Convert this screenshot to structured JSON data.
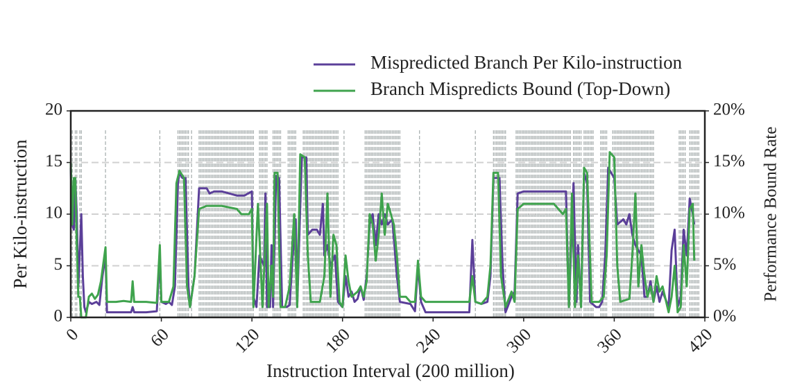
{
  "chart_data": {
    "type": "line",
    "xlabel": "Instruction Interval (200 million)",
    "ylabel": "Per Kilo-instruction",
    "y2label": "Performance Bound Rate",
    "xlim": [
      0,
      420
    ],
    "xticks": [
      0,
      60,
      120,
      180,
      240,
      300,
      360,
      420
    ],
    "ylim": [
      0,
      20
    ],
    "yticks": [
      0,
      5,
      10,
      15,
      20
    ],
    "y2lim": [
      0,
      20
    ],
    "y2ticks": [
      {
        "value": 0,
        "label": "0%"
      },
      {
        "value": 5,
        "label": "5%"
      },
      {
        "value": 10,
        "label": "10%"
      },
      {
        "value": 15,
        "label": "15%"
      },
      {
        "value": 20,
        "label": "20%"
      }
    ],
    "grid": true,
    "vline_color": "#a9b0b0",
    "vline_ranges": [
      [
        0,
        1
      ],
      [
        3,
        4
      ],
      [
        6,
        7
      ],
      [
        23,
        23
      ],
      [
        59,
        59
      ],
      [
        71,
        78
      ],
      [
        80,
        80
      ],
      [
        85,
        121
      ],
      [
        125,
        130
      ],
      [
        134,
        139
      ],
      [
        144,
        149
      ],
      [
        154,
        177
      ],
      [
        181,
        181
      ],
      [
        195,
        200
      ],
      [
        201,
        218
      ],
      [
        231,
        231
      ],
      [
        268,
        268
      ],
      [
        280,
        288
      ],
      [
        295,
        331
      ],
      [
        333,
        338
      ],
      [
        340,
        346
      ],
      [
        351,
        355
      ],
      [
        359,
        386
      ],
      [
        403,
        407
      ],
      [
        410,
        412
      ],
      [
        413,
        416
      ]
    ],
    "series": [
      {
        "name": "Mispredicted Branch Per Kilo-instruction",
        "color": "#5b3f99",
        "x": [
          0,
          1,
          2,
          3,
          4,
          5,
          7,
          8,
          9,
          10,
          12,
          14,
          17,
          19,
          21,
          23,
          24,
          30,
          40,
          41,
          42,
          50,
          57,
          59,
          60,
          63,
          65,
          67,
          69,
          71,
          72,
          74,
          76,
          78,
          79,
          82,
          85,
          90,
          92,
          95,
          100,
          105,
          110,
          115,
          120,
          121,
          123,
          125,
          128,
          129,
          130,
          132,
          133,
          134,
          136,
          138,
          140,
          143,
          145,
          147,
          149,
          150,
          153,
          156,
          157,
          160,
          163,
          165,
          167,
          168,
          170,
          172,
          175,
          177,
          180,
          182,
          184,
          186,
          188,
          190,
          192,
          194,
          196,
          198,
          200,
          202,
          204,
          206,
          208,
          210,
          213,
          216,
          218,
          225,
          228,
          230,
          232,
          235,
          250,
          264,
          266,
          268,
          272,
          276,
          278,
          280,
          284,
          286,
          288,
          292,
          294,
          296,
          300,
          310,
          320,
          328,
          330,
          333,
          335,
          336,
          338,
          340,
          342,
          344,
          348,
          350,
          352,
          354,
          356,
          360,
          362,
          366,
          368,
          370,
          372,
          374,
          376,
          378,
          380,
          382,
          384,
          386,
          388,
          390,
          392,
          396,
          398,
          400,
          402,
          404,
          406,
          408,
          410,
          412,
          413
        ],
        "values": [
          14.5,
          9,
          8.5,
          13.5,
          10,
          3,
          10,
          4,
          1,
          0.5,
          1.5,
          1.3,
          1.5,
          1.2,
          4,
          6,
          0.5,
          0.5,
          0.5,
          1,
          0.5,
          0.5,
          0.6,
          6,
          1.5,
          1.3,
          1.5,
          1.2,
          3,
          13,
          14,
          13.5,
          13.5,
          3,
          1,
          4,
          12.5,
          12.5,
          12,
          12.2,
          12.2,
          12,
          11.8,
          11.8,
          12.2,
          2,
          1,
          6,
          5,
          12,
          1,
          1,
          7,
          1,
          13.7,
          13.5,
          1,
          1,
          1.2,
          6,
          9.5,
          1,
          15.5,
          15.5,
          8,
          8.5,
          8.5,
          8,
          11,
          6,
          7,
          5,
          6,
          1.5,
          1,
          4,
          2,
          2.5,
          1.5,
          1.8,
          3,
          1.7,
          4,
          9,
          10,
          7,
          10,
          9,
          10,
          9,
          9.5,
          4,
          1.5,
          1.3,
          0.6,
          5,
          1.5,
          0.5,
          0.5,
          0.5,
          7.5,
          1.5,
          1.3,
          1.5,
          4,
          13.5,
          13.5,
          5,
          0.5,
          2,
          2.5,
          12,
          12.2,
          12.2,
          12.2,
          12.2,
          1,
          13,
          1.5,
          7,
          1,
          14,
          13,
          1.5,
          1,
          1,
          1.5,
          6,
          14.5,
          13.5,
          9,
          9.5,
          9,
          10,
          8,
          7,
          6.5,
          6,
          2,
          2,
          3.5,
          1.5,
          3,
          1.5,
          2.5,
          1,
          6.5,
          8.5,
          1,
          2,
          8.5,
          6,
          11.5,
          10,
          9
        ]
      },
      {
        "name": "Branch Mispredicts Bound (Top-Down)",
        "color": "#3fa34d",
        "axis": "y2",
        "x": [
          0,
          1,
          2,
          3,
          4,
          5,
          6,
          7,
          10,
          12,
          14,
          16,
          18,
          20,
          23,
          24,
          30,
          35,
          40,
          41,
          42,
          50,
          57,
          59,
          60,
          65,
          68,
          70,
          72,
          75,
          77,
          79,
          82,
          85,
          90,
          100,
          110,
          113,
          118,
          120,
          121,
          124,
          127,
          130,
          131,
          133,
          134,
          135,
          137,
          139,
          142,
          145,
          148,
          150,
          152,
          155,
          157,
          159,
          165,
          168,
          170,
          172,
          174,
          176,
          178,
          180,
          182,
          184,
          186,
          190,
          192,
          194,
          196,
          198,
          200,
          202,
          204,
          206,
          208,
          210,
          212,
          214,
          216,
          218,
          222,
          225,
          228,
          230,
          232,
          235,
          250,
          264,
          266,
          268,
          272,
          276,
          278,
          280,
          283,
          285,
          288,
          292,
          294,
          296,
          300,
          310,
          320,
          326,
          328,
          330,
          332,
          334,
          336,
          338,
          340,
          342,
          345,
          350,
          353,
          355,
          357,
          360,
          362,
          364,
          370,
          372,
          374,
          376,
          378,
          380,
          382,
          384,
          386,
          388,
          390,
          392,
          396,
          398,
          400,
          402,
          404,
          406,
          408,
          410,
          412,
          413
        ],
        "values": [
          15,
          9,
          13.5,
          13.5,
          7,
          2,
          2,
          0,
          0,
          2,
          2.3,
          1.8,
          2.2,
          3.5,
          6.8,
          1.5,
          1.5,
          1.6,
          1.5,
          3.5,
          1.5,
          1.5,
          1.4,
          7,
          1.5,
          1.5,
          3,
          13,
          14.2,
          13.5,
          3,
          1,
          4,
          10.5,
          10.8,
          10.8,
          10.5,
          10,
          10,
          10.5,
          1,
          11,
          1,
          11,
          1,
          5,
          2,
          14,
          14,
          1,
          1,
          3,
          10,
          1,
          15.8,
          15.5,
          6,
          1.5,
          1.5,
          4,
          12,
          2,
          8,
          7,
          1.5,
          1,
          6,
          3.5,
          2,
          2.5,
          3,
          2,
          3.5,
          10,
          9,
          5.5,
          8,
          12,
          8,
          11,
          10,
          9,
          6,
          2,
          2,
          1.5,
          1.5,
          5.5,
          2,
          1.5,
          1.5,
          1.5,
          4,
          1.5,
          1.3,
          2,
          5,
          14,
          14,
          4,
          1,
          2.5,
          1.5,
          10.5,
          11,
          11,
          11,
          10,
          10.5,
          1,
          12,
          1,
          6,
          1,
          14.5,
          14,
          1.5,
          1.5,
          2,
          6,
          16,
          15.5,
          5,
          1.5,
          1.8,
          6,
          12,
          3,
          7,
          4,
          2,
          3,
          1.5,
          4,
          2.5,
          3,
          0.5,
          2,
          5,
          0.5,
          1,
          7,
          3,
          10.5,
          11,
          5.5
        ]
      }
    ]
  }
}
